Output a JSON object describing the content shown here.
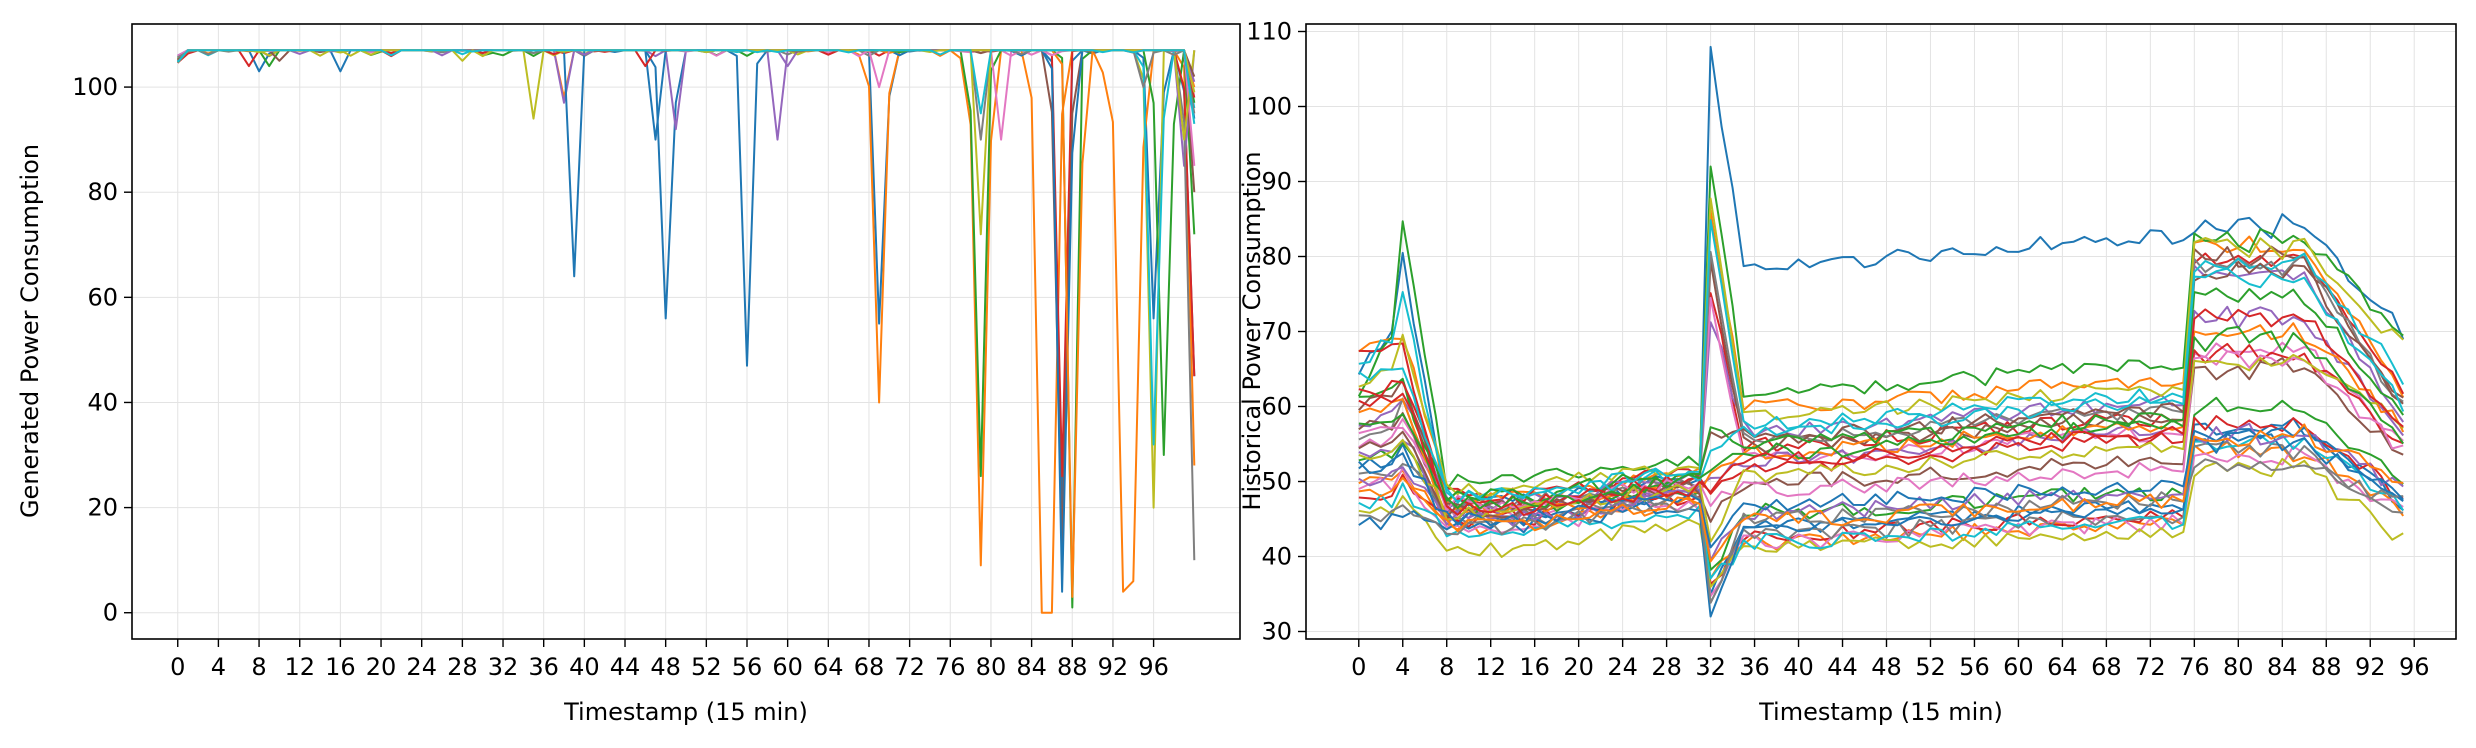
{
  "palette": [
    "#1f77b4",
    "#ff7f0e",
    "#2ca02c",
    "#d62728",
    "#9467bd",
    "#8c564b",
    "#e377c2",
    "#7f7f7f",
    "#bcbd22",
    "#17becf"
  ],
  "chart_data": [
    {
      "type": "line",
      "title": "",
      "xlabel": "Timestamp (15 min)",
      "ylabel": "Generated Power Consumption",
      "xlim": [
        -4.5,
        104.5
      ],
      "ylim": [
        -5,
        112
      ],
      "xticks": [
        0,
        4,
        8,
        12,
        16,
        20,
        24,
        28,
        32,
        36,
        40,
        44,
        48,
        52,
        56,
        60,
        64,
        68,
        72,
        76,
        80,
        84,
        88,
        92,
        96
      ],
      "yticks": [
        0,
        20,
        40,
        60,
        80,
        100
      ],
      "grid": true,
      "legend": "none",
      "baseline": 107,
      "series_count": 20,
      "series": [
        {
          "dips": [
            [
              8,
              103
            ],
            [
              48,
              56
            ],
            [
              56,
              47
            ],
            [
              69,
              55
            ],
            [
              87,
              20
            ],
            [
              96,
              56
            ],
            [
              100,
              45
            ]
          ]
        },
        {
          "dips": [
            [
              0,
              105
            ],
            [
              38,
              98
            ],
            [
              69,
              40
            ],
            [
              78,
              12
            ],
            [
              79,
              9
            ],
            [
              85,
              0
            ],
            [
              86,
              0
            ],
            [
              92,
              22
            ],
            [
              93,
              4
            ],
            [
              94,
              6
            ],
            [
              100,
              28
            ]
          ]
        },
        {
          "dips": [
            [
              9,
              104
            ],
            [
              79,
              26
            ],
            [
              88,
              1
            ],
            [
              97,
              30
            ],
            [
              100,
              72
            ]
          ]
        },
        {
          "dips": [
            [
              7,
              104
            ],
            [
              87,
              26
            ],
            [
              100,
              45
            ]
          ]
        },
        {
          "dips": [
            [
              38,
              97
            ],
            [
              49,
              92
            ],
            [
              59,
              90
            ],
            [
              99,
              85
            ]
          ]
        },
        {
          "dips": [
            [
              87,
              12
            ],
            [
              100,
              80
            ]
          ]
        },
        {
          "dips": [
            [
              81,
              90
            ],
            [
              100,
              85
            ]
          ]
        },
        {
          "dips": [
            [
              79,
              90
            ],
            [
              100,
              10
            ]
          ]
        },
        {
          "dips": [
            [
              35,
              94
            ],
            [
              79,
              72
            ],
            [
              96,
              20
            ],
            [
              99,
              90
            ]
          ]
        },
        {
          "dips": [
            [
              96,
              32
            ],
            [
              100,
              96
            ]
          ]
        },
        {
          "dips": [
            [
              16,
              103
            ],
            [
              39,
              64
            ],
            [
              47,
              90
            ],
            [
              87,
              4
            ],
            [
              100,
              94
            ]
          ]
        },
        {
          "dips": [
            [
              88,
              3
            ],
            [
              100,
              100
            ]
          ]
        },
        {
          "dips": [
            [
              30,
              106
            ],
            [
              100,
              97
            ]
          ]
        },
        {
          "dips": [
            [
              46,
              104
            ],
            [
              100,
              98
            ]
          ]
        },
        {
          "dips": [
            [
              60,
              104
            ],
            [
              100,
              101
            ]
          ]
        },
        {
          "dips": [
            [
              10,
              105
            ],
            [
              100,
              102
            ]
          ]
        },
        {
          "dips": [
            [
              69,
              100
            ],
            [
              100,
              99
            ]
          ]
        },
        {
          "dips": [
            [
              95,
              100
            ],
            [
              100,
              95
            ]
          ]
        },
        {
          "dips": [
            [
              28,
              105
            ],
            [
              100,
              99
            ]
          ]
        },
        {
          "dips": [
            [
              79,
              95
            ],
            [
              100,
              93
            ]
          ]
        }
      ]
    },
    {
      "type": "line",
      "title": "",
      "xlabel": "Timestamp (15 min)",
      "ylabel": "Historical Power Consumption",
      "xlim": [
        -4.8,
        99.8
      ],
      "ylim": [
        29,
        111
      ],
      "xticks": [
        0,
        4,
        8,
        12,
        16,
        20,
        24,
        28,
        32,
        36,
        40,
        44,
        48,
        52,
        56,
        60,
        64,
        68,
        72,
        76,
        80,
        84,
        88,
        92,
        96
      ],
      "yticks": [
        30,
        40,
        50,
        60,
        70,
        80,
        90,
        100,
        110
      ],
      "grid": true,
      "legend": "none",
      "series_count": 34,
      "series": [
        {
          "v0": 65,
          "peak": 80,
          "night": 47,
          "jump": 107,
          "mid": 79,
          "evening": 84,
          "end": 70
        },
        {
          "v0": 68,
          "peak": 70,
          "night": 48,
          "jump": 85,
          "mid": 60,
          "evening": 81,
          "end": 62
        },
        {
          "v0": 62,
          "peak": 85,
          "night": 50,
          "jump": 93,
          "mid": 62,
          "evening": 82,
          "end": 70
        },
        {
          "v0": 68,
          "peak": 68,
          "night": 48,
          "jump": 76,
          "mid": 55,
          "evening": 80,
          "end": 62
        },
        {
          "v0": 58,
          "peak": 62,
          "night": 47,
          "jump": 72,
          "mid": 57,
          "evening": 78,
          "end": 58
        },
        {
          "v0": 60,
          "peak": 64,
          "night": 46,
          "jump": 80,
          "mid": 55,
          "evening": 80,
          "end": 61
        },
        {
          "v0": 55,
          "peak": 58,
          "night": 46,
          "jump": 75,
          "mid": 53,
          "evening": 68,
          "end": 55
        },
        {
          "v0": 56,
          "peak": 60,
          "night": 47,
          "jump": 81,
          "mid": 56,
          "evening": 79,
          "end": 60
        },
        {
          "v0": 63,
          "peak": 70,
          "night": 49,
          "jump": 88,
          "mid": 59,
          "evening": 81,
          "end": 68
        },
        {
          "v0": 66,
          "peak": 75,
          "night": 48,
          "jump": 85,
          "mid": 58,
          "evening": 79,
          "end": 64
        },
        {
          "v0": 52,
          "peak": 54,
          "night": 45,
          "jump": 35,
          "mid": 44,
          "evening": 57,
          "end": 47
        },
        {
          "v0": 50,
          "peak": 52,
          "night": 44,
          "jump": 37,
          "mid": 42,
          "evening": 54,
          "end": 46
        },
        {
          "v0": 53,
          "peak": 55,
          "night": 46,
          "jump": 38,
          "mid": 46,
          "evening": 60,
          "end": 50
        },
        {
          "v0": 48,
          "peak": 50,
          "night": 45,
          "jump": 36,
          "mid": 43,
          "evening": 58,
          "end": 48
        },
        {
          "v0": 54,
          "peak": 56,
          "night": 46,
          "jump": 50,
          "mid": 53,
          "evening": 72,
          "end": 56
        },
        {
          "v0": 57,
          "peak": 59,
          "night": 47,
          "jump": 56,
          "mid": 56,
          "evening": 78,
          "end": 60
        },
        {
          "v0": 49,
          "peak": 51,
          "night": 44,
          "jump": 34,
          "mid": 42,
          "evening": 53,
          "end": 46
        },
        {
          "v0": 51,
          "peak": 53,
          "night": 45,
          "jump": 33,
          "mid": 43,
          "evening": 54,
          "end": 45
        },
        {
          "v0": 46,
          "peak": 48,
          "night": 41,
          "jump": 35,
          "mid": 41,
          "evening": 52,
          "end": 42
        },
        {
          "v0": 47,
          "peak": 49,
          "night": 43,
          "jump": 36,
          "mid": 42,
          "evening": 55,
          "end": 47
        },
        {
          "v0": 44,
          "peak": 46,
          "night": 44,
          "jump": 33,
          "mid": 44,
          "evening": 55,
          "end": 48
        },
        {
          "v0": 59,
          "peak": 61,
          "night": 46,
          "jump": 52,
          "mid": 54,
          "evening": 70,
          "end": 57
        },
        {
          "v0": 61,
          "peak": 63,
          "night": 48,
          "jump": 58,
          "mid": 55,
          "evening": 75,
          "end": 59
        },
        {
          "v0": 62,
          "peak": 64,
          "night": 47,
          "jump": 49,
          "mid": 52,
          "evening": 67,
          "end": 55
        },
        {
          "v0": 50,
          "peak": 52,
          "night": 45,
          "jump": 40,
          "mid": 46,
          "evening": 56,
          "end": 49
        },
        {
          "v0": 54,
          "peak": 56,
          "night": 46,
          "jump": 45,
          "mid": 50,
          "evening": 65,
          "end": 53
        },
        {
          "v0": 56,
          "peak": 58,
          "night": 47,
          "jump": 47,
          "mid": 49,
          "evening": 66,
          "end": 54
        },
        {
          "v0": 45,
          "peak": 47,
          "night": 44,
          "jump": 34,
          "mid": 45,
          "evening": 52,
          "end": 47
        },
        {
          "v0": 53,
          "peak": 55,
          "night": 46,
          "jump": 42,
          "mid": 51,
          "evening": 66,
          "end": 58
        },
        {
          "v0": 64,
          "peak": 66,
          "night": 48,
          "jump": 54,
          "mid": 57,
          "evening": 77,
          "end": 60
        },
        {
          "v0": 52,
          "peak": 54,
          "night": 45,
          "jump": 41,
          "mid": 47,
          "evening": 57,
          "end": 48
        },
        {
          "v0": 48,
          "peak": 50,
          "night": 44,
          "jump": 39,
          "mid": 45,
          "evening": 56,
          "end": 50
        },
        {
          "v0": 57,
          "peak": 60,
          "night": 47,
          "jump": 51,
          "mid": 54,
          "evening": 69,
          "end": 55
        },
        {
          "v0": 60,
          "peak": 62,
          "night": 46,
          "jump": 48,
          "mid": 53,
          "evening": 72,
          "end": 57
        }
      ]
    }
  ]
}
